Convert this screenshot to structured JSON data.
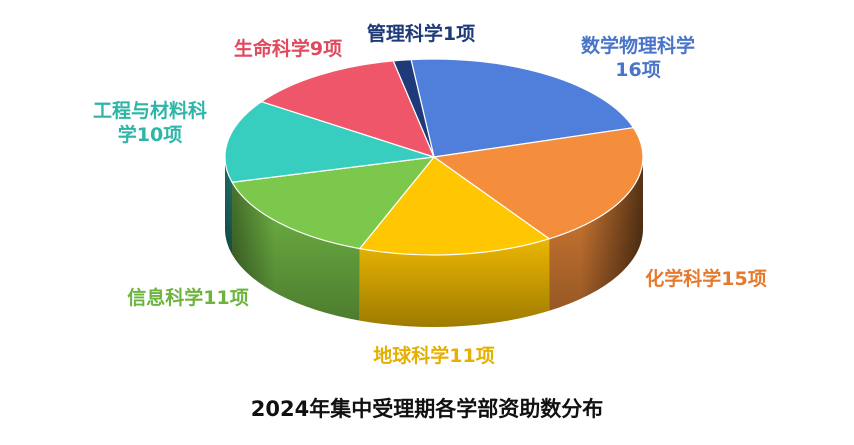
{
  "chart_data": {
    "type": "pie",
    "title": "2024年集中受理期各学部资助数分布",
    "unit": "项",
    "slices": [
      {
        "name": "数学物理科学",
        "value": 16,
        "label_lines": [
          "数学物理科学",
          "16项"
        ],
        "color": "#507FDB",
        "label_color": "#4A74C8"
      },
      {
        "name": "化学科学",
        "value": 15,
        "label_lines": [
          "化学科学15项"
        ],
        "color": "#F48E3C",
        "label_color": "#E57A2E"
      },
      {
        "name": "地球科学",
        "value": 11,
        "label_lines": [
          "地球科学11项"
        ],
        "color": "#FFC702",
        "label_color": "#E5B000"
      },
      {
        "name": "信息科学",
        "value": 11,
        "label_lines": [
          "信息科学11项"
        ],
        "color": "#7CC84C",
        "label_color": "#6DB33F"
      },
      {
        "name": "工程与材料科学",
        "value": 10,
        "label_lines": [
          "工程与材料科",
          "学10项"
        ],
        "color": "#37CDBF",
        "label_color": "#2FB5A8"
      },
      {
        "name": "生命科学",
        "value": 9,
        "label_lines": [
          "生命科学9项"
        ],
        "color": "#F0566A",
        "label_color": "#E04A5E"
      },
      {
        "name": "管理科学",
        "value": 1,
        "label_lines": [
          "管理科学1项"
        ],
        "color": "#1F3A78",
        "label_color": "#1F3A78"
      }
    ]
  }
}
